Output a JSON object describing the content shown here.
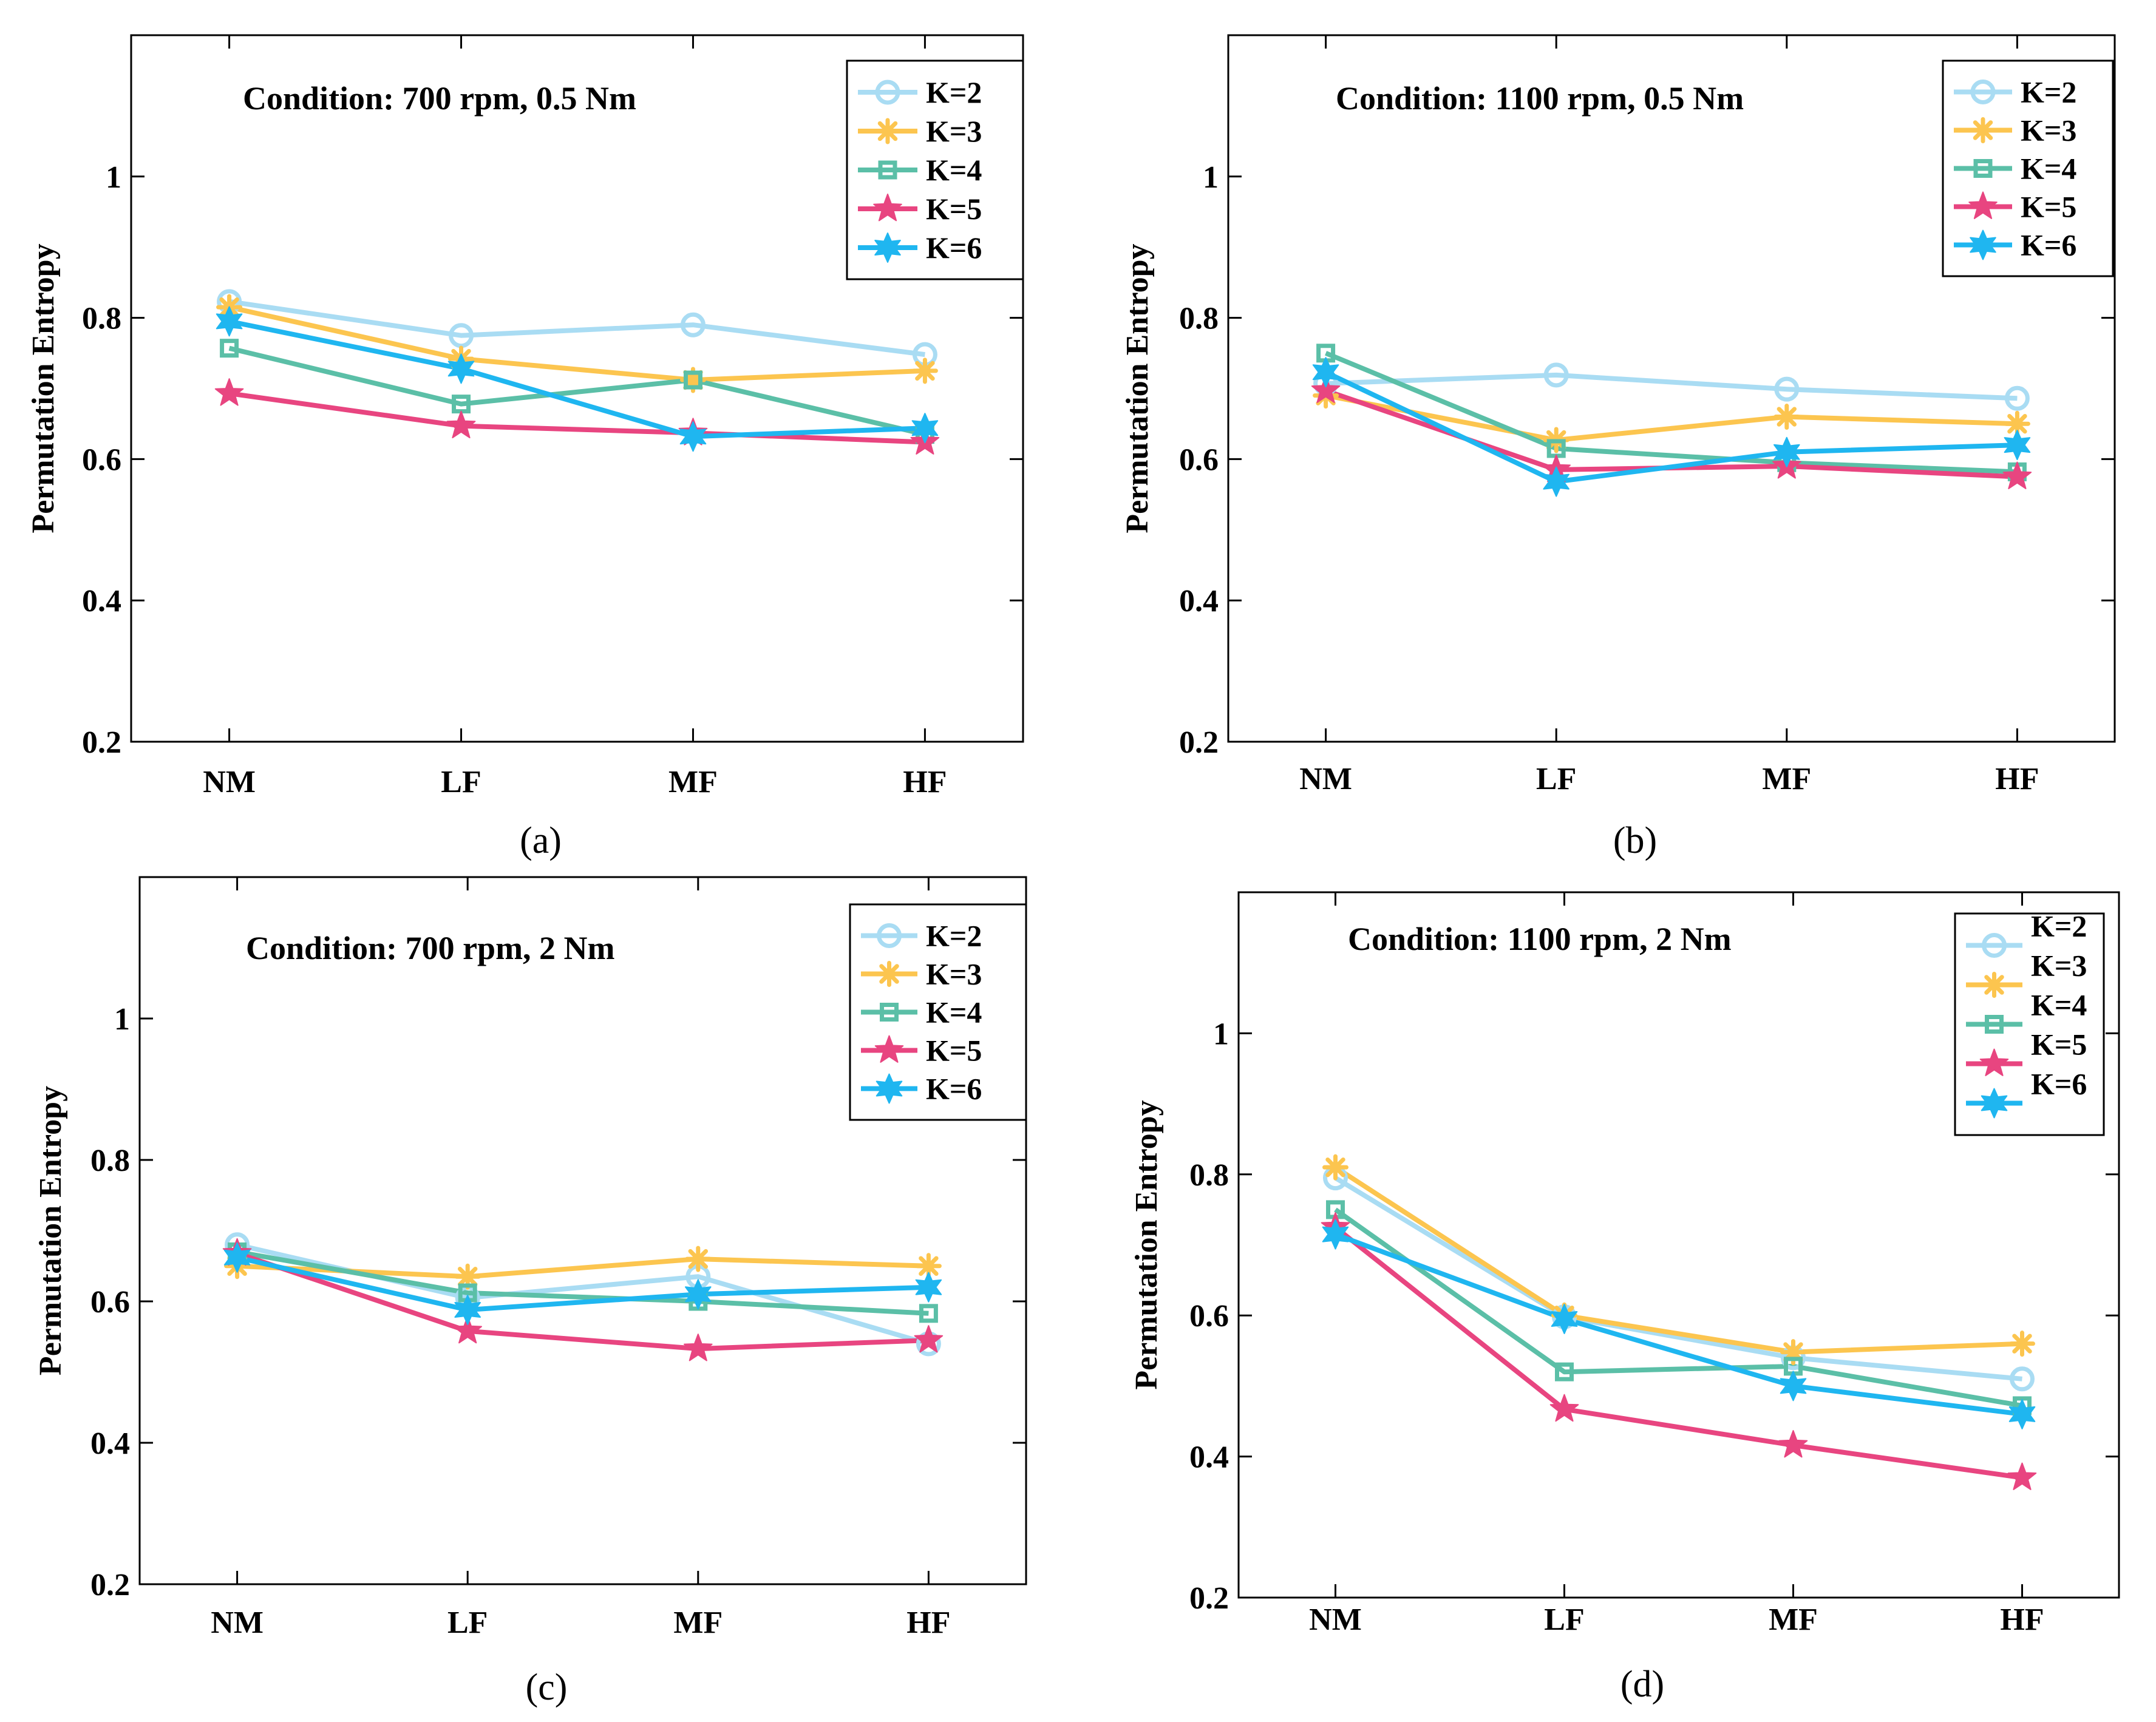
{
  "chart_data": [
    {
      "type": "line",
      "panel": "(a)",
      "title": "Condition: 700 rpm, 0.5 Nm",
      "xlabel": "",
      "ylabel": "Permutation Entropy",
      "categories": [
        "NM",
        "LF",
        "MF",
        "HF"
      ],
      "ylim": [
        0.2,
        1.2
      ],
      "yticks": [
        0.2,
        0.4,
        0.6,
        0.8,
        1
      ],
      "ytick_labels": [
        "0.2",
        "0.4",
        "0.6",
        "0.8",
        "1"
      ],
      "legend_position": "top-right",
      "series": [
        {
          "name": "K=2",
          "values": [
            0.823,
            0.775,
            0.79,
            0.748
          ]
        },
        {
          "name": "K=3",
          "values": [
            0.815,
            0.742,
            0.712,
            0.725
          ]
        },
        {
          "name": "K=4",
          "values": [
            0.757,
            0.678,
            0.712,
            0.635
          ]
        },
        {
          "name": "K=5",
          "values": [
            0.693,
            0.647,
            0.637,
            0.624
          ]
        },
        {
          "name": "K=6",
          "values": [
            0.795,
            0.728,
            0.632,
            0.644
          ]
        }
      ]
    },
    {
      "type": "line",
      "panel": "(b)",
      "title": "Condition: 1100 rpm, 0.5 Nm",
      "xlabel": "",
      "ylabel": "Permutation Entropy",
      "categories": [
        "NM",
        "LF",
        "MF",
        "HF"
      ],
      "ylim": [
        0.2,
        1.2
      ],
      "yticks": [
        0.2,
        0.4,
        0.6,
        0.8,
        1
      ],
      "ytick_labels": [
        "0.2",
        "0.4",
        "0.6",
        "0.8",
        "1"
      ],
      "legend_position": "top-right",
      "series": [
        {
          "name": "K=2",
          "values": [
            0.707,
            0.719,
            0.699,
            0.686
          ]
        },
        {
          "name": "K=3",
          "values": [
            0.69,
            0.627,
            0.66,
            0.65
          ]
        },
        {
          "name": "K=4",
          "values": [
            0.75,
            0.615,
            0.595,
            0.582
          ]
        },
        {
          "name": "K=5",
          "values": [
            0.697,
            0.585,
            0.59,
            0.575
          ]
        },
        {
          "name": "K=6",
          "values": [
            0.723,
            0.568,
            0.61,
            0.62
          ]
        }
      ]
    },
    {
      "type": "line",
      "panel": "(c)",
      "title": "Condition: 700 rpm, 2 Nm",
      "xlabel": "",
      "ylabel": "Permutation Entropy",
      "categories": [
        "NM",
        "LF",
        "MF",
        "HF"
      ],
      "ylim": [
        0.2,
        1.2
      ],
      "yticks": [
        0.2,
        0.4,
        0.6,
        0.8,
        1
      ],
      "ytick_labels": [
        "0.2",
        "0.4",
        "0.6",
        "0.8",
        "1"
      ],
      "legend_position": "top-right",
      "series": [
        {
          "name": "K=2",
          "values": [
            0.68,
            0.605,
            0.635,
            0.54
          ]
        },
        {
          "name": "K=3",
          "values": [
            0.65,
            0.635,
            0.66,
            0.65
          ]
        },
        {
          "name": "K=4",
          "values": [
            0.67,
            0.612,
            0.6,
            0.583
          ]
        },
        {
          "name": "K=5",
          "values": [
            0.668,
            0.558,
            0.533,
            0.545
          ]
        },
        {
          "name": "K=6",
          "values": [
            0.662,
            0.588,
            0.61,
            0.62
          ]
        }
      ]
    },
    {
      "type": "line",
      "panel": "(d)",
      "title": "Condition: 1100 rpm, 2 Nm",
      "xlabel": "",
      "ylabel": "Permutation Entropy",
      "categories": [
        "NM",
        "LF",
        "MF",
        "HF"
      ],
      "ylim": [
        0.2,
        1.2
      ],
      "yticks": [
        0.2,
        0.4,
        0.6,
        0.8,
        1
      ],
      "ytick_labels": [
        "0.2",
        "0.4",
        "0.6",
        "0.8",
        "1"
      ],
      "legend_position": "top-right",
      "series": [
        {
          "name": "K=2",
          "values": [
            0.795,
            0.598,
            0.54,
            0.51
          ]
        },
        {
          "name": "K=3",
          "values": [
            0.81,
            0.6,
            0.548,
            0.56
          ]
        },
        {
          "name": "K=4",
          "values": [
            0.75,
            0.52,
            0.528,
            0.472
          ]
        },
        {
          "name": "K=5",
          "values": [
            0.725,
            0.467,
            0.416,
            0.37
          ]
        },
        {
          "name": "K=6",
          "values": [
            0.715,
            0.595,
            0.5,
            0.46
          ]
        }
      ]
    }
  ],
  "series_styles": [
    {
      "color": "#a9dcf3",
      "marker": "circle"
    },
    {
      "color": "#fcc54f",
      "marker": "asterisk"
    },
    {
      "color": "#5bbfa7",
      "marker": "square"
    },
    {
      "color": "#e84580",
      "marker": "star"
    },
    {
      "color": "#1fb6f0",
      "marker": "hexagram"
    }
  ]
}
